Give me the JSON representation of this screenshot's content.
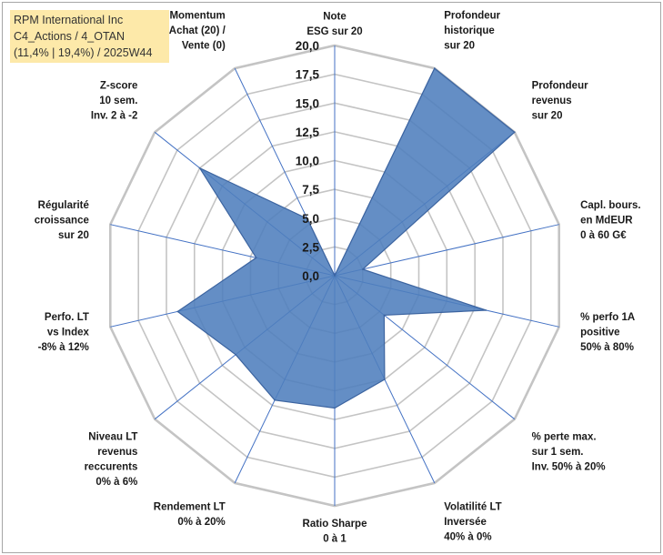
{
  "title": {
    "line1": "RPM International Inc",
    "line2": "C4_Actions / 4_OTAN",
    "line3": "(11,4% | 19,4%) / 2025W44"
  },
  "colors": {
    "fill": "#4f7ebd",
    "stroke": "#3c64a0",
    "grid": "#c4c4c4",
    "spoke": "#4472c4",
    "title_bg": "#fde9a9"
  },
  "chart_data": {
    "type": "radar",
    "rmax": 20,
    "rmin": 0,
    "ticks": [
      "0,0",
      "2,5",
      "5,0",
      "7,5",
      "10,0",
      "12,5",
      "15,0",
      "17,5",
      "20,0"
    ],
    "axes": [
      {
        "label": [
          "Note",
          "ESG sur 20"
        ],
        "value": 0.0
      },
      {
        "label": [
          "Profondeur",
          "historique",
          "sur 20"
        ],
        "value": 20.0
      },
      {
        "label": [
          "Profondeur",
          "revenus",
          "sur 20"
        ],
        "value": 20.0
      },
      {
        "label": [
          "Capl. bours.",
          "en MdEUR",
          "0 à 60 G€"
        ],
        "value": 2.5
      },
      {
        "label": [
          "% perfo 1A",
          "positive",
          "50% à 80%"
        ],
        "value": 13.5
      },
      {
        "label": [
          "% perte max.",
          "sur 1 sem.",
          "Inv. 50% à 20%"
        ],
        "value": 5.5
      },
      {
        "label": [
          "Volatilité LT",
          "Inversée",
          "40% à 0%"
        ],
        "value": 10.0
      },
      {
        "label": [
          "Ratio Sharpe",
          "0 à 1"
        ],
        "value": 11.5
      },
      {
        "label": [
          "Rendement LT",
          "0% à 20%"
        ],
        "value": 12.0
      },
      {
        "label": [
          "Niveau LT",
          "revenus",
          "reccurents",
          "0% à 6%"
        ],
        "value": 11.0
      },
      {
        "label": [
          "Perfo. LT",
          "vs Index",
          "-8% à 12%"
        ],
        "value": 14.0
      },
      {
        "label": [
          "Régularité",
          "croissance",
          "sur 20"
        ],
        "value": 7.0
      },
      {
        "label": [
          "Z-score",
          "10 sem.",
          "Inv. 2 à -2"
        ],
        "value": 15.0
      },
      {
        "label": [
          "Momentum",
          "Achat (20) /",
          "Vente (0)"
        ],
        "value": 5.5
      }
    ]
  }
}
